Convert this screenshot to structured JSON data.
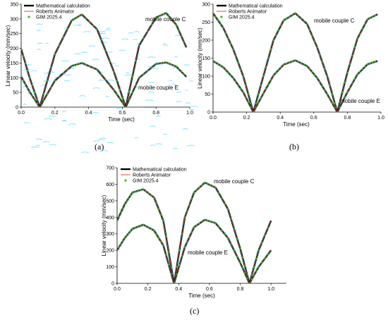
{
  "colors": {
    "math": "#000000",
    "roberts": "#d9542b",
    "gim": "#3fb618",
    "noise": "#00ccff"
  },
  "chart_data": [
    {
      "type": "line",
      "panel_label": "(a)",
      "xlabel": "Time (sec)",
      "ylabel": "Linear velocity (mm/sec)",
      "xlim": [
        0.0,
        1.0
      ],
      "ylim": [
        0,
        350
      ],
      "xticks": [
        "0.0",
        "0.2",
        "0.4",
        "0.6",
        "0.8",
        "1.0"
      ],
      "yticks": [
        "0",
        "50",
        "100",
        "150",
        "200",
        "250",
        "300",
        "350"
      ],
      "legend": [
        "Mathematical calculation",
        "Roberts Animator",
        "GIM 2025.4"
      ],
      "legend_position": "top-left",
      "annotations": [
        "mobile couple C",
        "mobile couple E"
      ],
      "series": [
        {
          "name": "mobile couple C",
          "x": [
            0.0,
            0.05,
            0.11,
            0.2,
            0.3,
            0.36,
            0.45,
            0.55,
            0.62,
            0.7,
            0.8,
            0.86,
            0.92,
            0.98
          ],
          "y": [
            198,
            100,
            0,
            180,
            295,
            315,
            265,
            120,
            0,
            210,
            305,
            320,
            280,
            203
          ]
        },
        {
          "name": "mobile couple E",
          "x": [
            0.0,
            0.05,
            0.11,
            0.2,
            0.3,
            0.36,
            0.45,
            0.55,
            0.62,
            0.7,
            0.8,
            0.86,
            0.92,
            0.98
          ],
          "y": [
            104,
            52,
            0,
            90,
            140,
            150,
            128,
            58,
            0,
            100,
            147,
            152,
            138,
            103
          ]
        }
      ]
    },
    {
      "type": "line",
      "panel_label": "(b)",
      "xlabel": "Time (sec)",
      "ylabel": "Linear velocity (mm/sec)",
      "xlim": [
        0.0,
        1.0
      ],
      "ylim": [
        0,
        300
      ],
      "xticks": [
        "0.0",
        "0.2",
        "0.4",
        "0.6",
        "0.8",
        "1.0"
      ],
      "yticks": [
        "0",
        "50",
        "100",
        "150",
        "200",
        "250",
        "300"
      ],
      "legend": [
        "Mathematical calculation",
        "Roberts Animator",
        "GIM 2025.4"
      ],
      "legend_position": "top-left",
      "annotations": [
        "mobile couple C",
        "mobile couple E"
      ],
      "series": [
        {
          "name": "mobile couple C",
          "x": [
            0.0,
            0.06,
            0.12,
            0.18,
            0.24,
            0.3,
            0.36,
            0.42,
            0.49,
            0.56,
            0.62,
            0.68,
            0.74,
            0.8,
            0.86,
            0.92,
            0.98
          ],
          "y": [
            275,
            235,
            175,
            100,
            0,
            100,
            200,
            255,
            275,
            245,
            180,
            100,
            0,
            110,
            205,
            258,
            272
          ]
        },
        {
          "name": "mobile couple E",
          "x": [
            0.0,
            0.06,
            0.12,
            0.18,
            0.24,
            0.3,
            0.36,
            0.42,
            0.49,
            0.56,
            0.62,
            0.68,
            0.74,
            0.8,
            0.86,
            0.92,
            0.98
          ],
          "y": [
            142,
            125,
            95,
            55,
            0,
            52,
            102,
            132,
            144,
            128,
            95,
            50,
            0,
            55,
            105,
            133,
            142
          ]
        }
      ]
    },
    {
      "type": "line",
      "panel_label": "(c)",
      "xlabel": "Time (sec)",
      "ylabel": "Linear velocity (mm/sec)",
      "xlim": [
        0.0,
        1.1
      ],
      "ylim": [
        0,
        700
      ],
      "xticks": [
        "0.0",
        "0.2",
        "0.4",
        "0.6",
        "0.8",
        "1.0"
      ],
      "yticks": [
        "0",
        "100",
        "200",
        "300",
        "400",
        "500",
        "600",
        "700"
      ],
      "legend": [
        "Mathematical calculation",
        "Roberts Animator",
        "GIM 2025.4"
      ],
      "legend_position": "top-left",
      "annotations": [
        "mobile couple C",
        "mobile couple E"
      ],
      "series": [
        {
          "name": "mobile couple C",
          "x": [
            0.0,
            0.05,
            0.1,
            0.17,
            0.24,
            0.3,
            0.37,
            0.44,
            0.5,
            0.57,
            0.64,
            0.72,
            0.8,
            0.86,
            0.92,
            1.0
          ],
          "y": [
            380,
            480,
            550,
            570,
            520,
            380,
            0,
            400,
            550,
            610,
            580,
            450,
            210,
            0,
            200,
            380
          ]
        },
        {
          "name": "mobile couple E",
          "x": [
            0.0,
            0.05,
            0.1,
            0.17,
            0.24,
            0.3,
            0.37,
            0.44,
            0.5,
            0.57,
            0.64,
            0.72,
            0.8,
            0.86,
            0.92,
            1.0
          ],
          "y": [
            200,
            275,
            330,
            355,
            320,
            230,
            0,
            220,
            340,
            385,
            365,
            275,
            125,
            0,
            100,
            200
          ]
        }
      ]
    }
  ]
}
